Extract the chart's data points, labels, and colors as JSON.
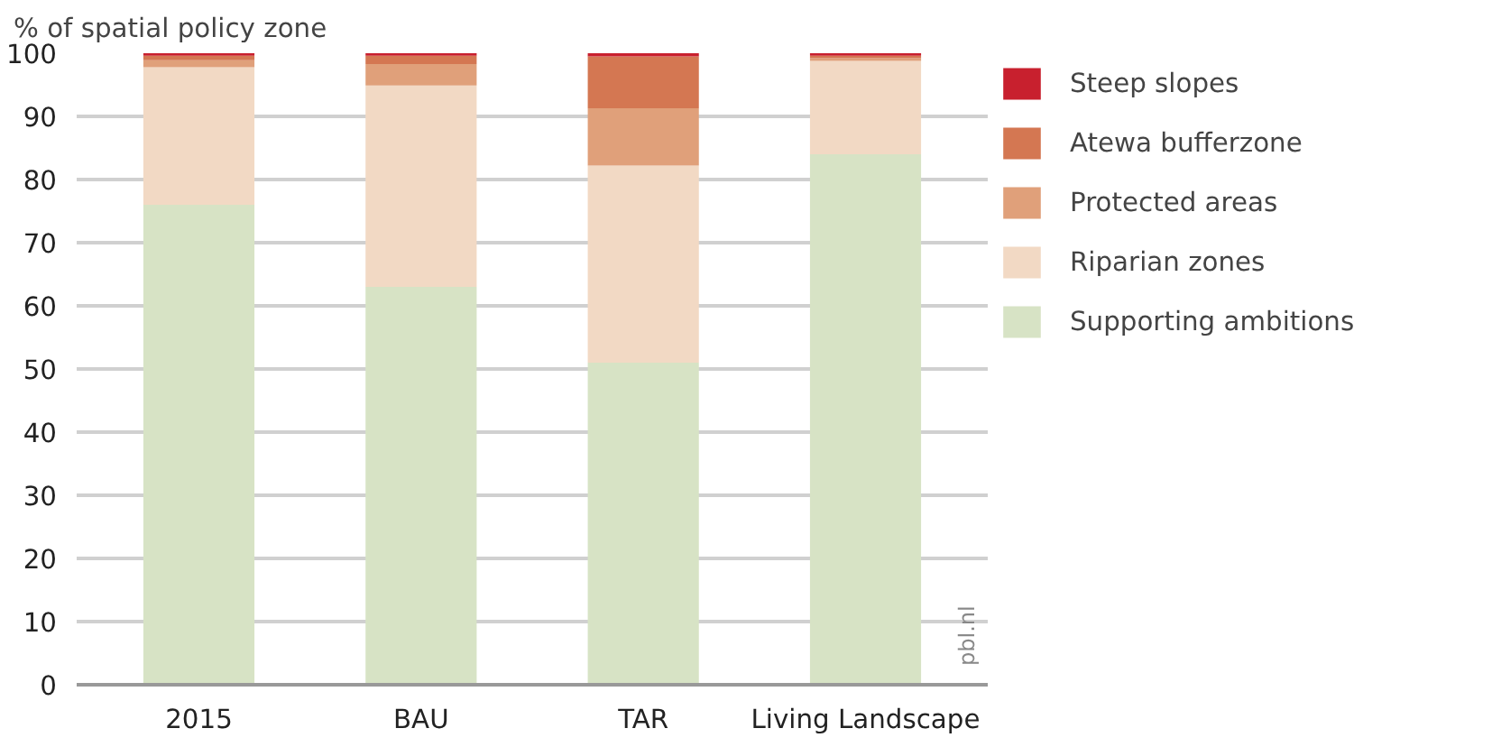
{
  "chart_data": {
    "type": "bar",
    "stacked": true,
    "ylabel": "% of spatial policy zone",
    "categories": [
      "2015",
      "BAU",
      "TAR",
      "Living Landscape"
    ],
    "series": [
      {
        "name": "Supporting ambitions",
        "color": "#d7e3c5",
        "values": [
          76,
          63,
          51,
          84
        ]
      },
      {
        "name": "Riparian zones",
        "color": "#f2d9c4",
        "values": [
          21.8,
          31.9,
          31.2,
          14.8
        ]
      },
      {
        "name": "Protected areas",
        "color": "#e0a07a",
        "values": [
          1.1,
          3.4,
          9.1,
          0.4
        ]
      },
      {
        "name": "Atewa bufferzone",
        "color": "#d47752",
        "values": [
          0.7,
          1.3,
          8.2,
          0.4
        ]
      },
      {
        "name": "Steep slopes",
        "color": "#c8202e",
        "values": [
          0.4,
          0.4,
          0.5,
          0.4
        ]
      }
    ],
    "ylim": [
      0,
      100
    ],
    "yticks": [
      0,
      10,
      20,
      30,
      40,
      50,
      60,
      70,
      80,
      90,
      100
    ],
    "grid": "y",
    "legend": "top right",
    "annotations": [
      "pbl.nl"
    ]
  }
}
